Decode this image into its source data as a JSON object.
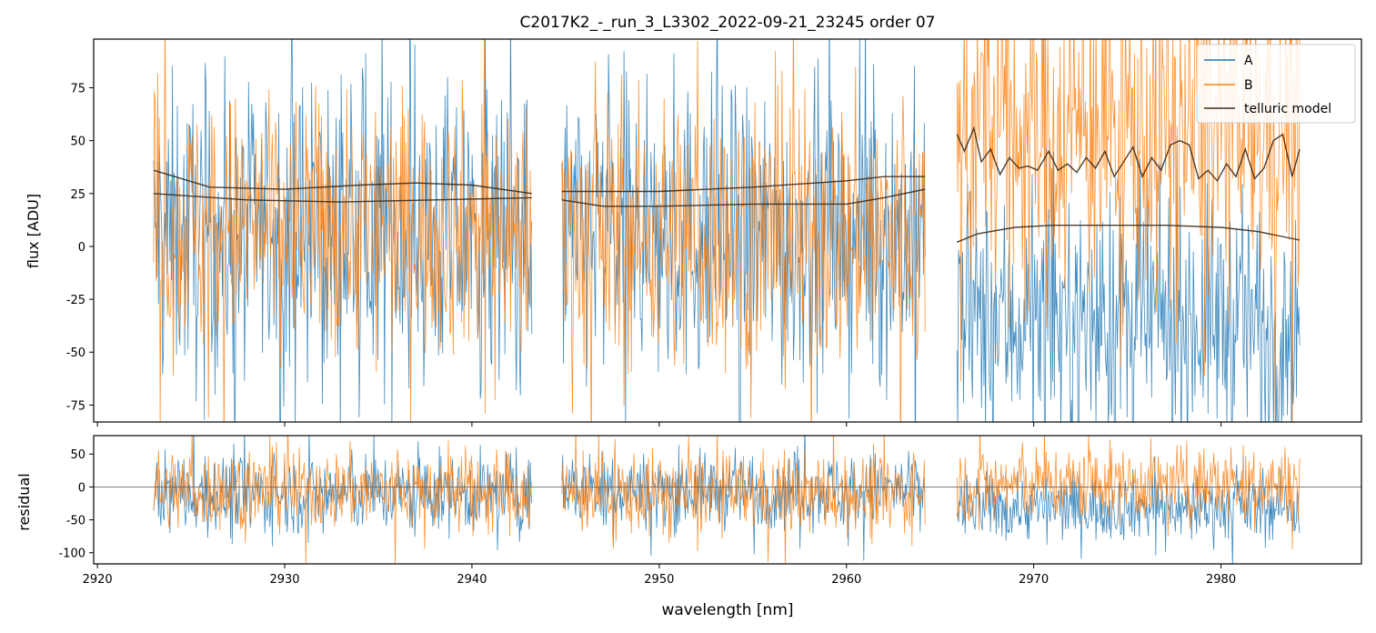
{
  "figure_title": "C2017K2_-_run_3_L3302_2022-09-21_23245  order 07",
  "colors": {
    "A": "#1f77b4",
    "B": "#ff7f0e",
    "telluric": "#3a2a1a",
    "zero": "#555555"
  },
  "chart_data": [
    {
      "type": "line",
      "title": "C2017K2_-_run_3_L3302_2022-09-21_23245  order 07",
      "xlabel": "",
      "ylabel": "flux [ADU]",
      "xlim": [
        2919.8,
        2987.5
      ],
      "ylim": [
        -83,
        98
      ],
      "yticks": [
        -75,
        -50,
        -25,
        0,
        25,
        50,
        75
      ],
      "xticks": [
        2920,
        2930,
        2940,
        2950,
        2960,
        2970,
        2980
      ],
      "segments": [
        [
          2923.0,
          2943.2
        ],
        [
          2944.8,
          2964.2
        ],
        [
          2965.9,
          2984.2
        ]
      ],
      "legend": {
        "position": "top-right",
        "entries": [
          "A",
          "B",
          "telluric model"
        ]
      },
      "series": [
        {
          "name": "A",
          "kind": "noisy spectrum",
          "segment_levels": [
            [
              5,
              5
            ],
            [
              5,
              5
            ],
            [
              -35,
              -35
            ]
          ],
          "noise_std": [
            35,
            35,
            28
          ]
        },
        {
          "name": "B",
          "kind": "noisy spectrum",
          "segment_levels": [
            [
              10,
              10
            ],
            [
              5,
              5
            ],
            [
              55,
              55
            ]
          ],
          "noise_std": [
            30,
            32,
            40
          ]
        },
        {
          "name": "telluric model",
          "curves": [
            {
              "x": [
                2923.0,
                2926,
                2930,
                2934,
                2937,
                2940,
                2943.2
              ],
              "y": [
                36,
                28,
                27,
                29,
                30,
                29,
                25
              ]
            },
            {
              "x": [
                2923.0,
                2928,
                2933,
                2938,
                2943.2
              ],
              "y": [
                25,
                22,
                21,
                22,
                23
              ]
            },
            {
              "x": [
                2944.8,
                2950,
                2955,
                2960,
                2962,
                2964.2
              ],
              "y": [
                26,
                26,
                28,
                31,
                33,
                33
              ]
            },
            {
              "x": [
                2944.8,
                2947,
                2950,
                2955,
                2960,
                2962,
                2964.2
              ],
              "y": [
                22,
                19,
                19,
                20,
                20,
                23,
                27
              ]
            },
            {
              "x": [
                2965.9,
                2966.3,
                2966.8,
                2967.2,
                2967.7,
                2968.2,
                2968.7,
                2969.2,
                2969.7,
                2970.2,
                2970.8,
                2971.3,
                2971.8,
                2972.3,
                2972.8,
                2973.3,
                2973.8,
                2974.3,
                2974.8,
                2975.3,
                2975.8,
                2976.3,
                2976.8,
                2977.3,
                2977.8,
                2978.3,
                2978.8,
                2979.3,
                2979.8,
                2980.3,
                2980.8,
                2981.3,
                2981.8,
                2982.3,
                2982.8,
                2983.3,
                2983.8,
                2984.2
              ],
              "y": [
                53,
                45,
                56,
                40,
                46,
                34,
                42,
                37,
                38,
                36,
                45,
                36,
                39,
                35,
                42,
                37,
                45,
                33,
                40,
                47,
                33,
                42,
                36,
                48,
                50,
                48,
                32,
                36,
                31,
                39,
                33,
                46,
                32,
                37,
                50,
                53,
                33,
                46
              ]
            },
            {
              "x": [
                2965.9,
                2967,
                2969,
                2971,
                2974,
                2977,
                2980,
                2982,
                2984.2
              ],
              "y": [
                2,
                6,
                9,
                10,
                10,
                10,
                9,
                7,
                3
              ]
            }
          ]
        }
      ]
    },
    {
      "type": "line",
      "title": "",
      "xlabel": "wavelength [nm]",
      "ylabel": "residual",
      "xlim": [
        2919.8,
        2987.5
      ],
      "ylim": [
        -117,
        78
      ],
      "yticks": [
        -100,
        -50,
        0,
        50
      ],
      "xticks": [
        2920,
        2930,
        2940,
        2950,
        2960,
        2970,
        2980
      ],
      "x_tick_labels": [
        "2920",
        "2930",
        "2940",
        "2950",
        "2960",
        "2970",
        "2980"
      ],
      "zero_line": 0,
      "series": [
        {
          "name": "A",
          "kind": "noisy residual",
          "segment_levels": [
            -10,
            -5,
            -30
          ],
          "noise_std": [
            30,
            28,
            25
          ]
        },
        {
          "name": "B",
          "kind": "noisy residual",
          "segment_levels": [
            -5,
            -10,
            5
          ],
          "noise_std": [
            30,
            30,
            28
          ]
        }
      ]
    }
  ]
}
